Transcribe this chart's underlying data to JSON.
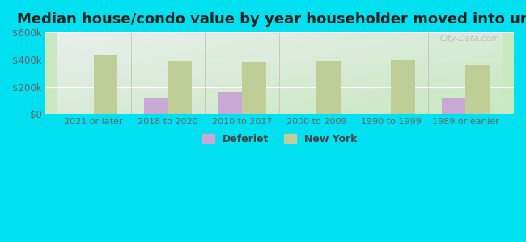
{
  "title": "Median house/condo value by year householder moved into unit",
  "categories": [
    "2021 or later",
    "2018 to 2020",
    "2010 to 2017",
    "2000 to 2009",
    "1990 to 1999",
    "1989 or earlier"
  ],
  "deferiet_values": [
    null,
    120000,
    162000,
    null,
    null,
    120000
  ],
  "new_york_values": [
    435000,
    385000,
    380000,
    388000,
    400000,
    355000
  ],
  "deferiet_color": "#c9a8d4",
  "new_york_color": "#bfce96",
  "background_outer": "#00e0f0",
  "background_top_left": "#e8efed",
  "background_bottom_right": "#c8e8c0",
  "ylim": [
    0,
    600000
  ],
  "yticks": [
    0,
    200000,
    400000,
    600000
  ],
  "ytick_labels": [
    "$0",
    "$200k",
    "$400k",
    "$600k"
  ],
  "legend_labels": [
    "Deferiet",
    "New York"
  ],
  "title_fontsize": 13,
  "watermark": "City-Data.com",
  "bar_width": 0.32,
  "tick_color": "#666666",
  "tick_fontsize": 8,
  "ytick_fontsize": 8.5
}
